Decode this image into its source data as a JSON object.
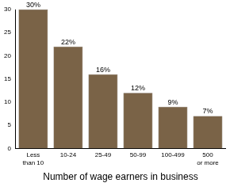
{
  "chart_data": {
    "type": "bar",
    "x_label": "Number of wage earners in business",
    "categories": [
      "Less than 10",
      "10-24",
      "25-49",
      "50-99",
      "100-499",
      "500 or more"
    ],
    "values": [
      30,
      22,
      16,
      12,
      9,
      7
    ],
    "value_labels": [
      "30%",
      "22%",
      "16%",
      "12%",
      "9%",
      "7%"
    ],
    "data_labels": true,
    "color": "#7a6347",
    "ylim": [
      0,
      30
    ],
    "yticks": [
      0,
      5,
      10,
      15,
      20,
      25,
      30
    ],
    "grid": false
  }
}
